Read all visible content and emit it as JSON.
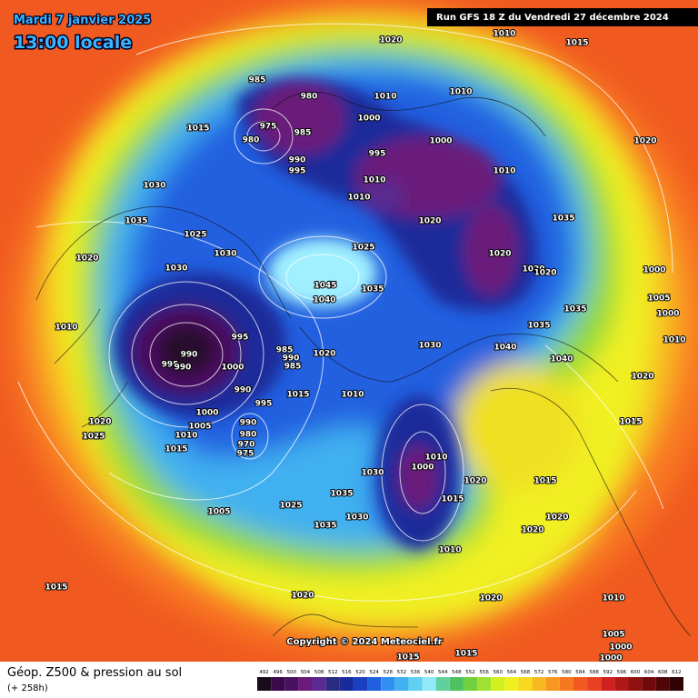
{
  "header": {
    "date": "Mardi 7 janvier 2025",
    "time": "13:00 locale",
    "run": "Run GFS 18 Z du Vendredi 27 décembre 2024"
  },
  "copyright": "Copyright © 2024 Meteociel.fr",
  "footer": {
    "caption": "Géop. Z500 & pression au sol",
    "lead": "(+ 258h)"
  },
  "colorbar": {
    "ticks": [
      492,
      496,
      500,
      504,
      508,
      512,
      516,
      520,
      524,
      528,
      532,
      536,
      540,
      544,
      548,
      552,
      556,
      560,
      564,
      568,
      572,
      576,
      580,
      584,
      588,
      592,
      596,
      600,
      604,
      608,
      612
    ],
    "colors": [
      "#1a0a1e",
      "#3a0a4a",
      "#4a1060",
      "#6a1a7a",
      "#5a2a90",
      "#2a2a80",
      "#1a2a9a",
      "#1a40c0",
      "#2060e0",
      "#3090f0",
      "#40b0f0",
      "#60d0f0",
      "#90e8f8",
      "#60d0a0",
      "#50c060",
      "#70d040",
      "#a0e030",
      "#d0f020",
      "#f0f020",
      "#f8d820",
      "#f8b820",
      "#f89820",
      "#f87820",
      "#f05a20",
      "#e84020",
      "#d02020",
      "#b01818",
      "#901010",
      "#700a0a",
      "#500606",
      "#300404"
    ]
  },
  "isobar_labels": [
    "985",
    "980",
    "1010",
    "1000",
    "975",
    "980",
    "985",
    "990",
    "995",
    "995",
    "1010",
    "1010",
    "1000",
    "1010",
    "1010",
    "1020",
    "1020",
    "1035",
    "1025",
    "1045",
    "1040",
    "1035",
    "1030",
    "1030",
    "1025",
    "1035",
    "1030",
    "1015",
    "1020",
    "1010",
    "990",
    "995",
    "990",
    "1000",
    "995",
    "985",
    "990",
    "985",
    "1020",
    "990",
    "1015",
    "1010",
    "995",
    "1000",
    "1005",
    "990",
    "980",
    "970",
    "975",
    "1010",
    "1020",
    "1025",
    "1015",
    "1030",
    "1040",
    "1035",
    "1040",
    "1020",
    "1015",
    "1000",
    "1005",
    "1000",
    "1010",
    "1010",
    "1000",
    "1020",
    "1015",
    "1015",
    "1020",
    "1020",
    "1020",
    "1010",
    "1030",
    "1035",
    "1030",
    "1035",
    "1025",
    "1005",
    "1015",
    "1020",
    "1015",
    "1015",
    "1020",
    "1010",
    "1015",
    "1020",
    "1020",
    "1020",
    "1035",
    "1010",
    "1005",
    "1000",
    "1000"
  ]
}
